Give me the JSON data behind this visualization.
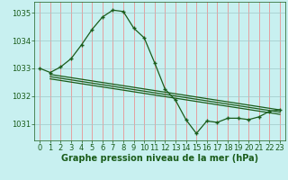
{
  "bg_color": "#c8f0f0",
  "grid_color": "#f08080",
  "line_color": "#1a5c1a",
  "xlabel": "Graphe pression niveau de la mer (hPa)",
  "ylim": [
    1030.4,
    1035.4
  ],
  "xlim": [
    -0.5,
    23.5
  ],
  "yticks": [
    1031,
    1032,
    1033,
    1034,
    1035
  ],
  "xticks": [
    0,
    1,
    2,
    3,
    4,
    5,
    6,
    7,
    8,
    9,
    10,
    11,
    12,
    13,
    14,
    15,
    16,
    17,
    18,
    19,
    20,
    21,
    22,
    23
  ],
  "main_line_x": [
    0,
    1,
    2,
    3,
    4,
    5,
    6,
    7,
    8,
    9,
    10,
    11,
    12,
    13,
    14,
    15,
    16,
    17,
    18,
    19,
    20,
    21,
    22,
    23
  ],
  "main_line_y": [
    1033.0,
    1032.85,
    1033.05,
    1033.35,
    1033.85,
    1034.4,
    1034.85,
    1035.1,
    1035.05,
    1034.45,
    1034.1,
    1033.2,
    1032.25,
    1031.85,
    1031.15,
    1030.65,
    1031.1,
    1031.05,
    1031.2,
    1031.2,
    1031.15,
    1031.25,
    1031.45,
    1031.5
  ],
  "line2_x": [
    1,
    23
  ],
  "line2_y": [
    1032.78,
    1031.5
  ],
  "line3_x": [
    1,
    23
  ],
  "line3_y": [
    1032.7,
    1031.42
  ],
  "line4_x": [
    1,
    23
  ],
  "line4_y": [
    1032.62,
    1031.34
  ],
  "tick_fontsize": 6,
  "label_fontsize": 7,
  "label_fontweight": "bold"
}
